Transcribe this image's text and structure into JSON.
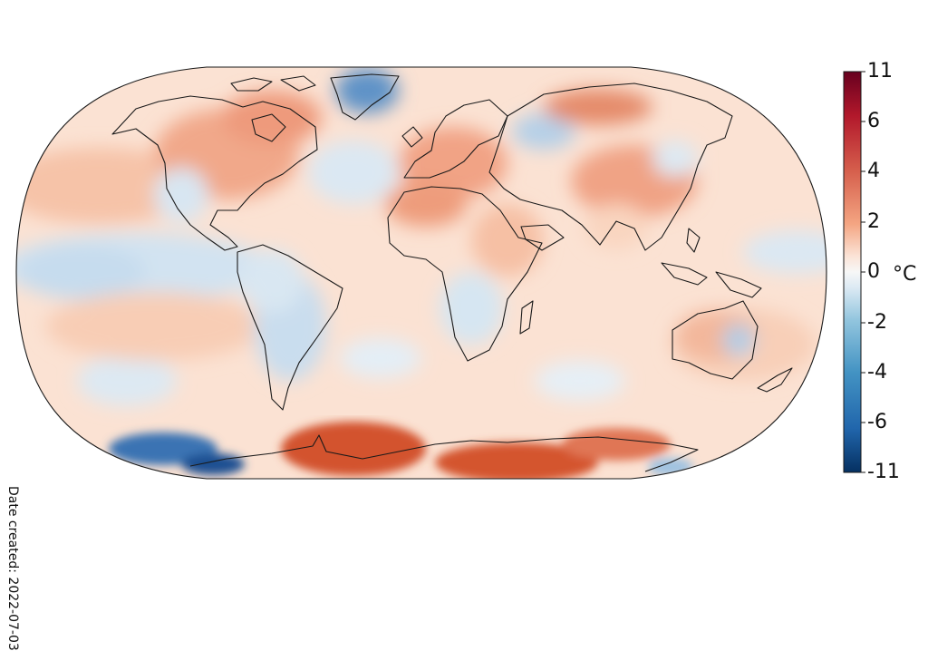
{
  "map": {
    "projection": "Robinson",
    "region": "World",
    "palette": {
      "cold_extreme": "#053061",
      "cold": "#4393c3",
      "cool": "#d1e5f0",
      "neutral": "#f7f7f7",
      "warm": "#fddbc7",
      "hot": "#d6604d",
      "hot_extreme": "#67001f"
    },
    "coastline_color": "#1a1a1a"
  },
  "colorbar": {
    "ticks": [
      "11",
      "6",
      "4",
      "2",
      "0",
      "-2",
      "-4",
      "-6",
      "-11"
    ],
    "unit": "°C"
  },
  "footer": {
    "date_created": "Date created: 2022-07-03"
  }
}
